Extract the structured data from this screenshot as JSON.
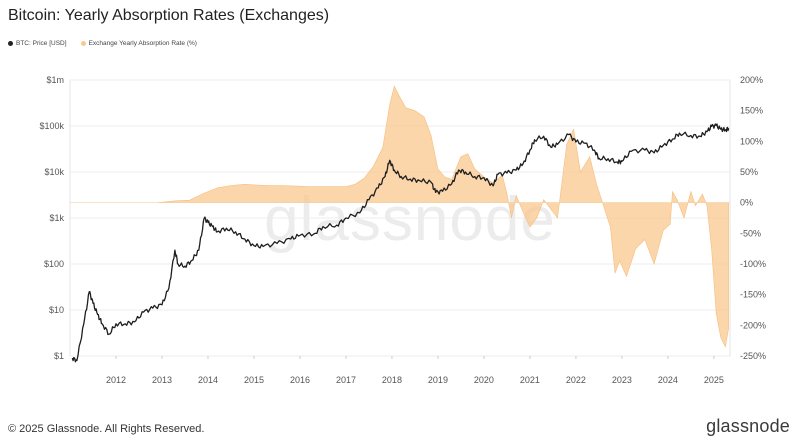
{
  "chart_data": {
    "type": "line+area",
    "title": "Bitcoin: Yearly Absorption Rates (Exchanges)",
    "legend": [
      {
        "name": "BTC: Price [USD]",
        "color": "#222222"
      },
      {
        "name": "Exchange Yearly Absorption Rate (%)",
        "color": "#f9c88f"
      }
    ],
    "watermark": "glassnode",
    "x_ticks": [
      "2012",
      "2013",
      "2014",
      "2015",
      "2016",
      "2017",
      "2018",
      "2019",
      "2020",
      "2021",
      "2022",
      "2023",
      "2024",
      "2025"
    ],
    "y_left": {
      "scale": "log",
      "range": [
        1,
        1000000
      ],
      "ticks": [
        {
          "v": 1,
          "label": "$1"
        },
        {
          "v": 10,
          "label": "$10"
        },
        {
          "v": 100,
          "label": "$100"
        },
        {
          "v": 1000,
          "label": "$1k"
        },
        {
          "v": 10000,
          "label": "$10k"
        },
        {
          "v": 100000,
          "label": "$100k"
        },
        {
          "v": 1000000,
          "label": "$1m"
        }
      ]
    },
    "y_right": {
      "scale": "linear",
      "range": [
        -250,
        200
      ],
      "ticks": [
        {
          "v": 200,
          "label": "200%"
        },
        {
          "v": 150,
          "label": "150%"
        },
        {
          "v": 100,
          "label": "100%"
        },
        {
          "v": 50,
          "label": "50%"
        },
        {
          "v": 0,
          "label": "0%"
        },
        {
          "v": -50,
          "label": "-50%"
        },
        {
          "v": -100,
          "label": "-100%"
        },
        {
          "v": -150,
          "label": "-150%"
        },
        {
          "v": -200,
          "label": "-200%"
        },
        {
          "v": -250,
          "label": "-250%"
        }
      ]
    },
    "series": [
      {
        "name": "BTC: Price [USD]",
        "axis": "left",
        "points": [
          [
            2011.05,
            0.9
          ],
          [
            2011.15,
            0.8
          ],
          [
            2011.3,
            5
          ],
          [
            2011.42,
            25
          ],
          [
            2011.5,
            14
          ],
          [
            2011.6,
            8
          ],
          [
            2011.7,
            5
          ],
          [
            2011.85,
            3
          ],
          [
            2012.0,
            5
          ],
          [
            2012.2,
            5
          ],
          [
            2012.4,
            5.5
          ],
          [
            2012.6,
            9
          ],
          [
            2012.8,
            11
          ],
          [
            2013.0,
            13
          ],
          [
            2013.15,
            30
          ],
          [
            2013.28,
            200
          ],
          [
            2013.35,
            100
          ],
          [
            2013.5,
            90
          ],
          [
            2013.65,
            120
          ],
          [
            2013.8,
            200
          ],
          [
            2013.92,
            1000
          ],
          [
            2014.0,
            800
          ],
          [
            2014.1,
            650
          ],
          [
            2014.2,
            500
          ],
          [
            2014.4,
            600
          ],
          [
            2014.6,
            500
          ],
          [
            2014.8,
            350
          ],
          [
            2015.0,
            250
          ],
          [
            2015.2,
            240
          ],
          [
            2015.5,
            280
          ],
          [
            2015.8,
            350
          ],
          [
            2016.0,
            420
          ],
          [
            2016.3,
            450
          ],
          [
            2016.5,
            650
          ],
          [
            2016.8,
            700
          ],
          [
            2017.0,
            1000
          ],
          [
            2017.3,
            1300
          ],
          [
            2017.5,
            2500
          ],
          [
            2017.7,
            4500
          ],
          [
            2017.85,
            8000
          ],
          [
            2017.95,
            18000
          ],
          [
            2018.05,
            11000
          ],
          [
            2018.2,
            8000
          ],
          [
            2018.4,
            7000
          ],
          [
            2018.6,
            6500
          ],
          [
            2018.85,
            6000
          ],
          [
            2018.95,
            3600
          ],
          [
            2019.1,
            3800
          ],
          [
            2019.3,
            5500
          ],
          [
            2019.45,
            11000
          ],
          [
            2019.6,
            10000
          ],
          [
            2019.8,
            8000
          ],
          [
            2020.0,
            7500
          ],
          [
            2020.2,
            5000
          ],
          [
            2020.3,
            8800
          ],
          [
            2020.5,
            9500
          ],
          [
            2020.7,
            11000
          ],
          [
            2020.85,
            15000
          ],
          [
            2021.0,
            30000
          ],
          [
            2021.1,
            50000
          ],
          [
            2021.3,
            60000
          ],
          [
            2021.45,
            35000
          ],
          [
            2021.6,
            40000
          ],
          [
            2021.85,
            65000
          ],
          [
            2022.0,
            45000
          ],
          [
            2022.2,
            42000
          ],
          [
            2022.4,
            30000
          ],
          [
            2022.5,
            20000
          ],
          [
            2022.7,
            19500
          ],
          [
            2022.9,
            16500
          ],
          [
            2023.0,
            17000
          ],
          [
            2023.2,
            28000
          ],
          [
            2023.5,
            30000
          ],
          [
            2023.7,
            26000
          ],
          [
            2023.9,
            38000
          ],
          [
            2024.1,
            52000
          ],
          [
            2024.25,
            70000
          ],
          [
            2024.5,
            62000
          ],
          [
            2024.7,
            60000
          ],
          [
            2024.85,
            75000
          ],
          [
            2024.95,
            98000
          ],
          [
            2025.05,
            102000
          ],
          [
            2025.15,
            85000
          ],
          [
            2025.25,
            82000
          ],
          [
            2025.32,
            90000
          ]
        ]
      },
      {
        "name": "Exchange Yearly Absorption Rate (%)",
        "axis": "right",
        "points": [
          [
            2012.9,
            0
          ],
          [
            2013.3,
            3
          ],
          [
            2013.6,
            4
          ],
          [
            2013.9,
            15
          ],
          [
            2014.2,
            24
          ],
          [
            2014.5,
            28
          ],
          [
            2014.8,
            30
          ],
          [
            2015.0,
            29
          ],
          [
            2015.3,
            28
          ],
          [
            2015.6,
            28
          ],
          [
            2015.9,
            27
          ],
          [
            2016.2,
            26
          ],
          [
            2016.5,
            26
          ],
          [
            2016.8,
            26
          ],
          [
            2017.0,
            26
          ],
          [
            2017.2,
            30
          ],
          [
            2017.4,
            40
          ],
          [
            2017.6,
            60
          ],
          [
            2017.8,
            90
          ],
          [
            2017.95,
            160
          ],
          [
            2018.05,
            190
          ],
          [
            2018.15,
            175
          ],
          [
            2018.3,
            155
          ],
          [
            2018.5,
            150
          ],
          [
            2018.7,
            140
          ],
          [
            2018.85,
            110
          ],
          [
            2019.0,
            55
          ],
          [
            2019.15,
            42
          ],
          [
            2019.3,
            38
          ],
          [
            2019.5,
            75
          ],
          [
            2019.65,
            80
          ],
          [
            2019.8,
            55
          ],
          [
            2020.0,
            42
          ],
          [
            2020.2,
            32
          ],
          [
            2020.4,
            45
          ],
          [
            2020.5,
            15
          ],
          [
            2020.6,
            -25
          ],
          [
            2020.7,
            12
          ],
          [
            2020.85,
            -15
          ],
          [
            2021.0,
            -40
          ],
          [
            2021.15,
            -25
          ],
          [
            2021.3,
            5
          ],
          [
            2021.45,
            -10
          ],
          [
            2021.6,
            -25
          ],
          [
            2021.8,
            95
          ],
          [
            2021.95,
            120
          ],
          [
            2022.1,
            50
          ],
          [
            2022.3,
            75
          ],
          [
            2022.45,
            30
          ],
          [
            2022.6,
            -5
          ],
          [
            2022.75,
            -40
          ],
          [
            2022.85,
            -115
          ],
          [
            2022.95,
            -95
          ],
          [
            2023.1,
            -120
          ],
          [
            2023.3,
            -75
          ],
          [
            2023.5,
            -60
          ],
          [
            2023.7,
            -100
          ],
          [
            2023.9,
            -45
          ],
          [
            2024.05,
            -35
          ],
          [
            2024.1,
            18
          ],
          [
            2024.2,
            5
          ],
          [
            2024.35,
            -25
          ],
          [
            2024.5,
            18
          ],
          [
            2024.6,
            -5
          ],
          [
            2024.75,
            14
          ],
          [
            2024.85,
            -5
          ],
          [
            2024.95,
            -75
          ],
          [
            2025.05,
            -180
          ],
          [
            2025.15,
            -220
          ],
          [
            2025.25,
            -235
          ],
          [
            2025.32,
            -205
          ]
        ]
      }
    ]
  },
  "footer": {
    "copyright": "© 2025 Glassnode. All Rights Reserved.",
    "brand": "glassnode"
  }
}
